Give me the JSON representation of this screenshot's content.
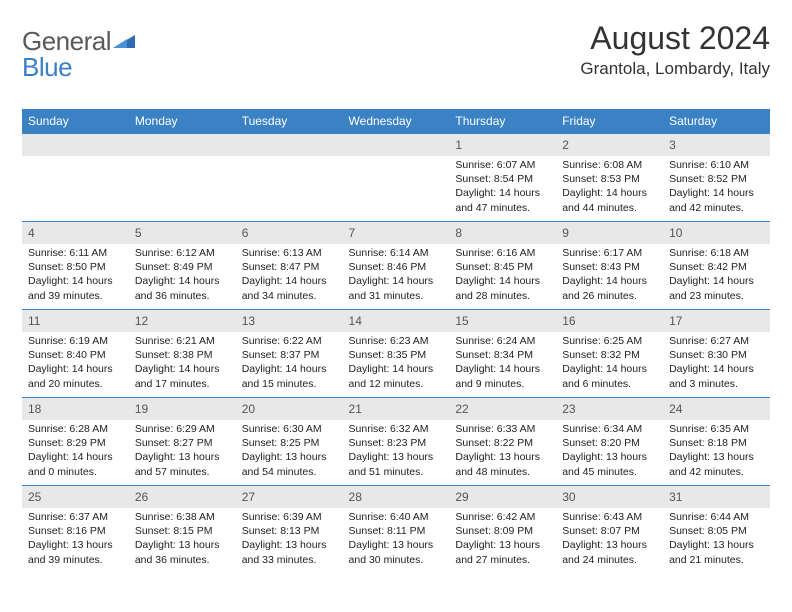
{
  "logo": {
    "text_gray": "General",
    "text_blue": "Blue"
  },
  "header": {
    "month_title": "August 2024",
    "location": "Grantola, Lombardy, Italy"
  },
  "colors": {
    "header_bg": "#3b82c4",
    "header_text": "#ffffff",
    "daynum_bg": "#e8e8e8",
    "border": "#3b82c4",
    "logo_gray": "#5a5a5a",
    "logo_blue": "#3b7fc4"
  },
  "day_headers": [
    "Sunday",
    "Monday",
    "Tuesday",
    "Wednesday",
    "Thursday",
    "Friday",
    "Saturday"
  ],
  "weeks": [
    [
      {
        "day": "",
        "sunrise": "",
        "sunset": "",
        "daylight": ""
      },
      {
        "day": "",
        "sunrise": "",
        "sunset": "",
        "daylight": ""
      },
      {
        "day": "",
        "sunrise": "",
        "sunset": "",
        "daylight": ""
      },
      {
        "day": "",
        "sunrise": "",
        "sunset": "",
        "daylight": ""
      },
      {
        "day": "1",
        "sunrise": "Sunrise: 6:07 AM",
        "sunset": "Sunset: 8:54 PM",
        "daylight": "Daylight: 14 hours and 47 minutes."
      },
      {
        "day": "2",
        "sunrise": "Sunrise: 6:08 AM",
        "sunset": "Sunset: 8:53 PM",
        "daylight": "Daylight: 14 hours and 44 minutes."
      },
      {
        "day": "3",
        "sunrise": "Sunrise: 6:10 AM",
        "sunset": "Sunset: 8:52 PM",
        "daylight": "Daylight: 14 hours and 42 minutes."
      }
    ],
    [
      {
        "day": "4",
        "sunrise": "Sunrise: 6:11 AM",
        "sunset": "Sunset: 8:50 PM",
        "daylight": "Daylight: 14 hours and 39 minutes."
      },
      {
        "day": "5",
        "sunrise": "Sunrise: 6:12 AM",
        "sunset": "Sunset: 8:49 PM",
        "daylight": "Daylight: 14 hours and 36 minutes."
      },
      {
        "day": "6",
        "sunrise": "Sunrise: 6:13 AM",
        "sunset": "Sunset: 8:47 PM",
        "daylight": "Daylight: 14 hours and 34 minutes."
      },
      {
        "day": "7",
        "sunrise": "Sunrise: 6:14 AM",
        "sunset": "Sunset: 8:46 PM",
        "daylight": "Daylight: 14 hours and 31 minutes."
      },
      {
        "day": "8",
        "sunrise": "Sunrise: 6:16 AM",
        "sunset": "Sunset: 8:45 PM",
        "daylight": "Daylight: 14 hours and 28 minutes."
      },
      {
        "day": "9",
        "sunrise": "Sunrise: 6:17 AM",
        "sunset": "Sunset: 8:43 PM",
        "daylight": "Daylight: 14 hours and 26 minutes."
      },
      {
        "day": "10",
        "sunrise": "Sunrise: 6:18 AM",
        "sunset": "Sunset: 8:42 PM",
        "daylight": "Daylight: 14 hours and 23 minutes."
      }
    ],
    [
      {
        "day": "11",
        "sunrise": "Sunrise: 6:19 AM",
        "sunset": "Sunset: 8:40 PM",
        "daylight": "Daylight: 14 hours and 20 minutes."
      },
      {
        "day": "12",
        "sunrise": "Sunrise: 6:21 AM",
        "sunset": "Sunset: 8:38 PM",
        "daylight": "Daylight: 14 hours and 17 minutes."
      },
      {
        "day": "13",
        "sunrise": "Sunrise: 6:22 AM",
        "sunset": "Sunset: 8:37 PM",
        "daylight": "Daylight: 14 hours and 15 minutes."
      },
      {
        "day": "14",
        "sunrise": "Sunrise: 6:23 AM",
        "sunset": "Sunset: 8:35 PM",
        "daylight": "Daylight: 14 hours and 12 minutes."
      },
      {
        "day": "15",
        "sunrise": "Sunrise: 6:24 AM",
        "sunset": "Sunset: 8:34 PM",
        "daylight": "Daylight: 14 hours and 9 minutes."
      },
      {
        "day": "16",
        "sunrise": "Sunrise: 6:25 AM",
        "sunset": "Sunset: 8:32 PM",
        "daylight": "Daylight: 14 hours and 6 minutes."
      },
      {
        "day": "17",
        "sunrise": "Sunrise: 6:27 AM",
        "sunset": "Sunset: 8:30 PM",
        "daylight": "Daylight: 14 hours and 3 minutes."
      }
    ],
    [
      {
        "day": "18",
        "sunrise": "Sunrise: 6:28 AM",
        "sunset": "Sunset: 8:29 PM",
        "daylight": "Daylight: 14 hours and 0 minutes."
      },
      {
        "day": "19",
        "sunrise": "Sunrise: 6:29 AM",
        "sunset": "Sunset: 8:27 PM",
        "daylight": "Daylight: 13 hours and 57 minutes."
      },
      {
        "day": "20",
        "sunrise": "Sunrise: 6:30 AM",
        "sunset": "Sunset: 8:25 PM",
        "daylight": "Daylight: 13 hours and 54 minutes."
      },
      {
        "day": "21",
        "sunrise": "Sunrise: 6:32 AM",
        "sunset": "Sunset: 8:23 PM",
        "daylight": "Daylight: 13 hours and 51 minutes."
      },
      {
        "day": "22",
        "sunrise": "Sunrise: 6:33 AM",
        "sunset": "Sunset: 8:22 PM",
        "daylight": "Daylight: 13 hours and 48 minutes."
      },
      {
        "day": "23",
        "sunrise": "Sunrise: 6:34 AM",
        "sunset": "Sunset: 8:20 PM",
        "daylight": "Daylight: 13 hours and 45 minutes."
      },
      {
        "day": "24",
        "sunrise": "Sunrise: 6:35 AM",
        "sunset": "Sunset: 8:18 PM",
        "daylight": "Daylight: 13 hours and 42 minutes."
      }
    ],
    [
      {
        "day": "25",
        "sunrise": "Sunrise: 6:37 AM",
        "sunset": "Sunset: 8:16 PM",
        "daylight": "Daylight: 13 hours and 39 minutes."
      },
      {
        "day": "26",
        "sunrise": "Sunrise: 6:38 AM",
        "sunset": "Sunset: 8:15 PM",
        "daylight": "Daylight: 13 hours and 36 minutes."
      },
      {
        "day": "27",
        "sunrise": "Sunrise: 6:39 AM",
        "sunset": "Sunset: 8:13 PM",
        "daylight": "Daylight: 13 hours and 33 minutes."
      },
      {
        "day": "28",
        "sunrise": "Sunrise: 6:40 AM",
        "sunset": "Sunset: 8:11 PM",
        "daylight": "Daylight: 13 hours and 30 minutes."
      },
      {
        "day": "29",
        "sunrise": "Sunrise: 6:42 AM",
        "sunset": "Sunset: 8:09 PM",
        "daylight": "Daylight: 13 hours and 27 minutes."
      },
      {
        "day": "30",
        "sunrise": "Sunrise: 6:43 AM",
        "sunset": "Sunset: 8:07 PM",
        "daylight": "Daylight: 13 hours and 24 minutes."
      },
      {
        "day": "31",
        "sunrise": "Sunrise: 6:44 AM",
        "sunset": "Sunset: 8:05 PM",
        "daylight": "Daylight: 13 hours and 21 minutes."
      }
    ]
  ]
}
